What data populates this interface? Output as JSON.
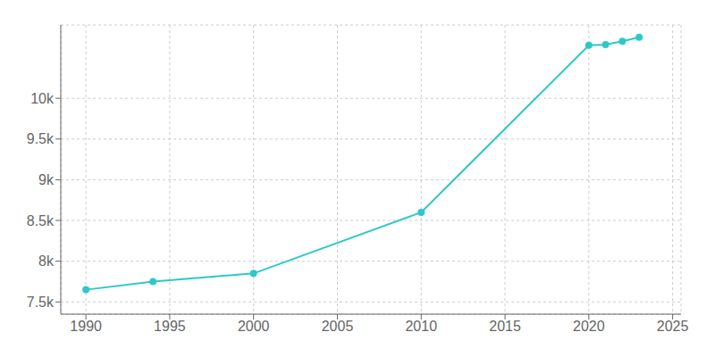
{
  "chart_data": {
    "type": "line",
    "x": [
      1990,
      1994,
      2000,
      2010,
      2020,
      2021,
      2022,
      2023
    ],
    "values": [
      7650,
      7750,
      7850,
      8600,
      10650,
      10660,
      10700,
      10750
    ],
    "color": "#2ec8c8",
    "marker": "circle",
    "xlim": [
      1988.5,
      2025.5
    ],
    "xticks": [
      1990,
      1995,
      2000,
      2005,
      2010,
      2015,
      2020,
      2025
    ],
    "ylim": [
      7350,
      10900
    ],
    "yticks": [
      {
        "value": 7500,
        "label": "7.5k"
      },
      {
        "value": 8000,
        "label": "8k"
      },
      {
        "value": 8500,
        "label": "8.5k"
      },
      {
        "value": 9000,
        "label": "9k"
      },
      {
        "value": 9500,
        "label": "9.5k"
      },
      {
        "value": 10000,
        "label": "10k"
      }
    ],
    "grid": true
  }
}
